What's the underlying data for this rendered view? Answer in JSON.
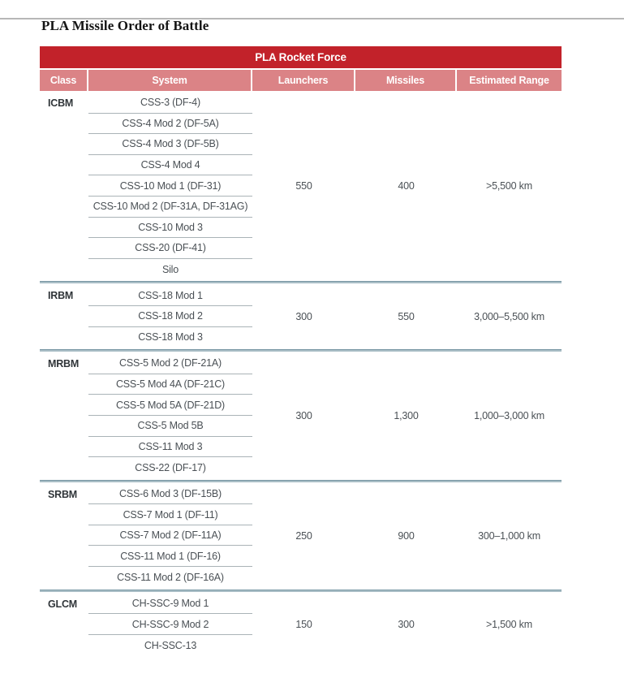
{
  "page": {
    "title": "PLA Missile Order of Battle"
  },
  "colors": {
    "dark_red": "#c2222a",
    "pink": "#db8386",
    "divider_blue_gray": "#7796a3",
    "row_line_gray": "#aab3b7",
    "body_text": "#4a5055",
    "top_rule_gray": "#b7b7b7"
  },
  "table": {
    "title": "PLA Rocket Force",
    "columns": [
      "Class",
      "System",
      "Launchers",
      "Missiles",
      "Estimated Range"
    ],
    "sections": [
      {
        "class": "ICBM",
        "systems": [
          "CSS-3 (DF-4)",
          "CSS-4 Mod 2 (DF-5A)",
          "CSS-4 Mod 3 (DF-5B)",
          "CSS-4 Mod 4",
          "CSS-10 Mod 1 (DF-31)",
          "CSS-10 Mod 2 (DF-31A, DF-31AG)",
          "CSS-10 Mod 3",
          "CSS-20 (DF-41)",
          "Silo"
        ],
        "launchers": "550",
        "missiles": "400",
        "range": ">5,500 km"
      },
      {
        "class": "IRBM",
        "systems": [
          "CSS-18 Mod 1",
          "CSS-18 Mod 2",
          "CSS-18 Mod 3"
        ],
        "launchers": "300",
        "missiles": "550",
        "range": "3,000–5,500 km"
      },
      {
        "class": "MRBM",
        "systems": [
          "CSS-5 Mod 2 (DF-21A)",
          "CSS-5 Mod 4A (DF-21C)",
          "CSS-5 Mod 5A (DF-21D)",
          "CSS-5 Mod 5B",
          "CSS-11 Mod 3",
          "CSS-22 (DF-17)"
        ],
        "launchers": "300",
        "missiles": "1,300",
        "range": "1,000–3,000 km"
      },
      {
        "class": "SRBM",
        "systems": [
          "CSS-6 Mod 3 (DF-15B)",
          "CSS-7 Mod 1 (DF-11)",
          "CSS-7 Mod 2 (DF-11A)",
          "CSS-11 Mod 1 (DF-16)",
          "CSS-11 Mod 2 (DF-16A)"
        ],
        "launchers": "250",
        "missiles": "900",
        "range": "300–1,000 km"
      },
      {
        "class": "GLCM",
        "systems": [
          "CH-SSC-9 Mod 1",
          "CH-SSC-9 Mod 2",
          "CH-SSC-13"
        ],
        "launchers": "150",
        "missiles": "300",
        "range": ">1,500 km"
      }
    ]
  }
}
